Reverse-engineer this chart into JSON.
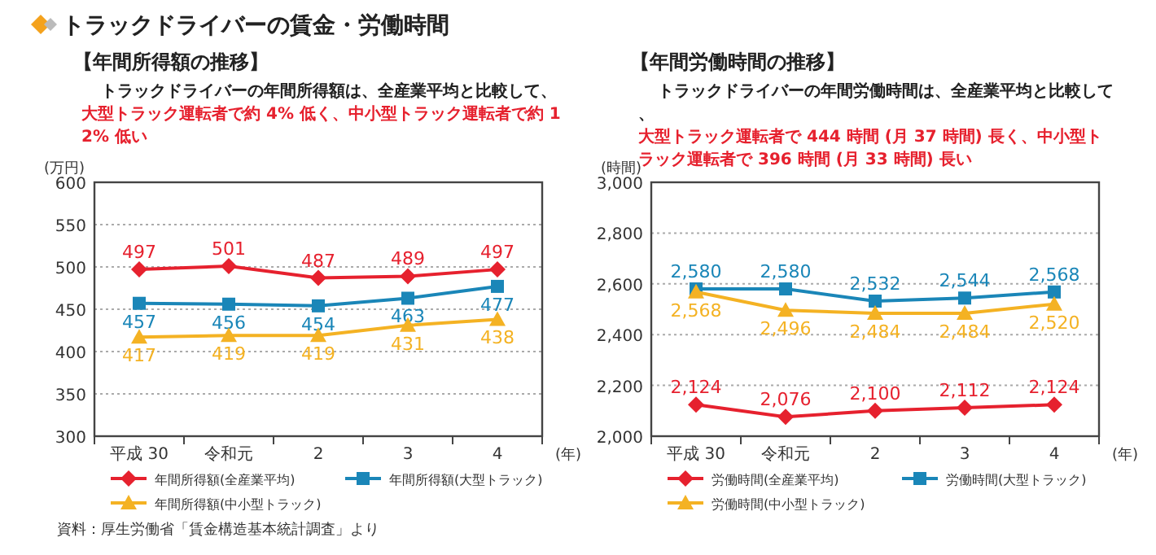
{
  "chart_data": [
    {
      "type": "line",
      "title": "トラックドライバーの賃金・労働時間",
      "subtitle": "【年間所得額の推移】",
      "annotations": [
        "トラックドライバーの年間所得額は、全産業平均と比較して、",
        "大型トラック運転者で約 4% 低く、中小型トラック運転者で約 12% 低い",
        "資料：厚生労働省「賃金構造基本統計調査」より"
      ],
      "ylabel": "(万円)",
      "xlabel": "(年)",
      "categories": [
        "平成 30",
        "令和元",
        "2",
        "3",
        "4"
      ],
      "ylim": [
        300,
        600
      ],
      "yticks": [
        300,
        350,
        400,
        450,
        500,
        550,
        600
      ],
      "grid": "y",
      "legend": "bottom",
      "data_labels": true,
      "series": [
        {
          "name": "年間所得額(全産業平均)",
          "color": "#e6212e",
          "marker": "diamond",
          "values": [
            497,
            501,
            487,
            489,
            497
          ]
        },
        {
          "name": "年間所得額(大型トラック)",
          "color": "#1a86b8",
          "marker": "square",
          "values": [
            457,
            456,
            454,
            463,
            477
          ]
        },
        {
          "name": "年間所得額(中小型トラック)",
          "color": "#f4b223",
          "marker": "triangle",
          "values": [
            417,
            419,
            419,
            431,
            438
          ]
        }
      ]
    },
    {
      "type": "line",
      "subtitle": "【年間労働時間の推移】",
      "annotations": [
        "トラックドライバーの年間労働時間は、全産業平均と比較して、",
        "大型トラック運転者で 444 時間 (月 37 時間) 長く、中小型トラック運転者で 396 時間 (月 33 時間) 長い"
      ],
      "ylabel": "(時間)",
      "xlabel": "(年)",
      "categories": [
        "平成 30",
        "令和元",
        "2",
        "3",
        "4"
      ],
      "ylim": [
        2000,
        3000
      ],
      "yticks": [
        {
          "value": 2000,
          "label": "2,000"
        },
        {
          "value": 2200,
          "label": "2,200"
        },
        {
          "value": 2400,
          "label": "2,400"
        },
        {
          "value": 2600,
          "label": "2,600"
        },
        {
          "value": 2800,
          "label": "2,800"
        },
        {
          "value": 3000,
          "label": "3,000"
        }
      ],
      "grid": "y",
      "legend": "bottom",
      "series": [
        {
          "name": "労働時間(全産業平均)",
          "color": "#e6212e",
          "marker": "diamond",
          "values": [
            2124,
            2076,
            2100,
            2112,
            2124
          ],
          "value_labels": [
            "2,124",
            "2,076",
            "2,100",
            "2,112",
            "2,124"
          ]
        },
        {
          "name": "労働時間(大型トラック)",
          "color": "#1a86b8",
          "marker": "square",
          "values": [
            2580,
            2580,
            2532,
            2544,
            2568
          ],
          "value_labels": [
            "2,580",
            "2,580",
            "2,532",
            "2,544",
            "2,568"
          ]
        },
        {
          "name": "労働時間(中小型トラック)",
          "color": "#f4b223",
          "marker": "triangle",
          "values": [
            2568,
            2496,
            2484,
            2484,
            2520
          ],
          "value_labels": [
            "2,568",
            "2,496",
            "2,484",
            "2,484",
            "2,520"
          ]
        }
      ]
    }
  ]
}
